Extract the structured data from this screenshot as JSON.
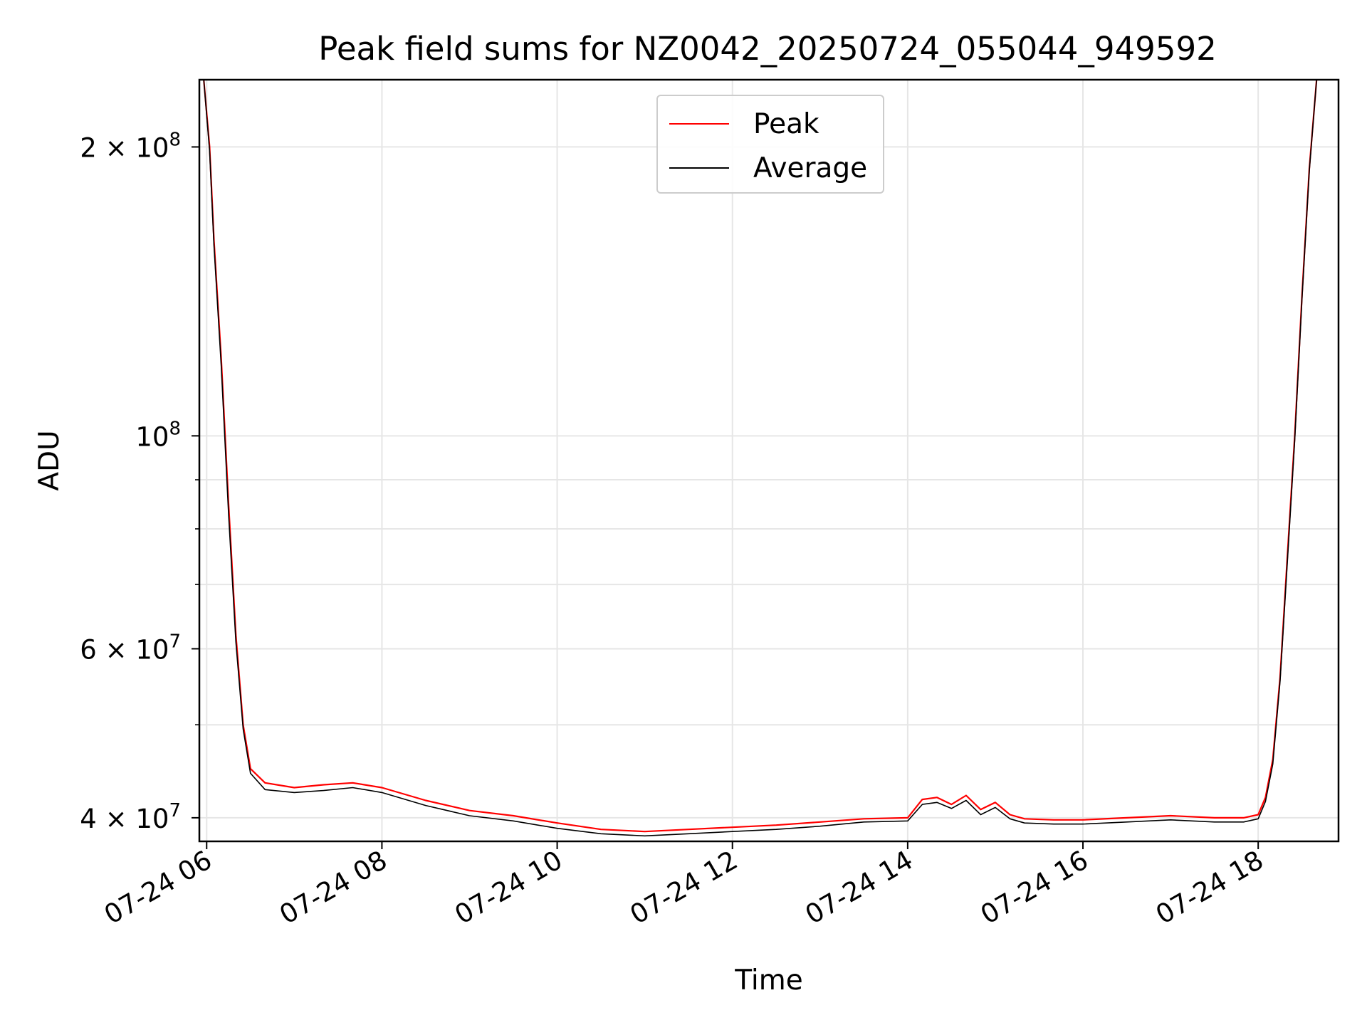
{
  "chart_data": {
    "type": "line",
    "title": "Peak field sums for NZ0042_20250724_055044_949592",
    "xlabel": "Time",
    "ylabel": "ADU",
    "yscale": "log",
    "grid": true,
    "legend_position": "upper center",
    "xlim": [
      "2025-07-24 05:55",
      "2025-07-24 18:55"
    ],
    "ylim": [
      37800000,
      235000000
    ],
    "x_ticks": [
      {
        "value": "2025-07-24 06:00",
        "label": "07-24 06"
      },
      {
        "value": "2025-07-24 08:00",
        "label": "07-24 08"
      },
      {
        "value": "2025-07-24 10:00",
        "label": "07-24 10"
      },
      {
        "value": "2025-07-24 12:00",
        "label": "07-24 12"
      },
      {
        "value": "2025-07-24 14:00",
        "label": "07-24 14"
      },
      {
        "value": "2025-07-24 16:00",
        "label": "07-24 16"
      },
      {
        "value": "2025-07-24 18:00",
        "label": "07-24 18"
      }
    ],
    "y_ticks": [
      {
        "value": 40000000,
        "label_mantissa": "4 × 10",
        "label_exp": "7"
      },
      {
        "value": 60000000,
        "label_mantissa": "6 × 10",
        "label_exp": "7"
      },
      {
        "value": 100000000,
        "label_mantissa": "10",
        "label_exp": "8"
      },
      {
        "value": 200000000,
        "label_mantissa": "2 × 10",
        "label_exp": "8"
      }
    ],
    "y_minor_ticks": [
      50000000,
      70000000,
      80000000,
      90000000
    ],
    "series": [
      {
        "name": "Peak",
        "color": "#ff0000",
        "x": [
          "2025-07-24 05:58",
          "2025-07-24 06:02",
          "2025-07-24 06:05",
          "2025-07-24 06:10",
          "2025-07-24 06:15",
          "2025-07-24 06:20",
          "2025-07-24 06:25",
          "2025-07-24 06:30",
          "2025-07-24 06:40",
          "2025-07-24 07:00",
          "2025-07-24 07:20",
          "2025-07-24 07:40",
          "2025-07-24 08:00",
          "2025-07-24 08:30",
          "2025-07-24 09:00",
          "2025-07-24 09:30",
          "2025-07-24 10:00",
          "2025-07-24 10:30",
          "2025-07-24 11:00",
          "2025-07-24 11:30",
          "2025-07-24 12:00",
          "2025-07-24 12:30",
          "2025-07-24 13:00",
          "2025-07-24 13:30",
          "2025-07-24 14:00",
          "2025-07-24 14:10",
          "2025-07-24 14:20",
          "2025-07-24 14:30",
          "2025-07-24 14:40",
          "2025-07-24 14:50",
          "2025-07-24 15:00",
          "2025-07-24 15:10",
          "2025-07-24 15:20",
          "2025-07-24 15:40",
          "2025-07-24 16:00",
          "2025-07-24 16:30",
          "2025-07-24 17:00",
          "2025-07-24 17:30",
          "2025-07-24 17:50",
          "2025-07-24 18:00",
          "2025-07-24 18:05",
          "2025-07-24 18:10",
          "2025-07-24 18:15",
          "2025-07-24 18:20",
          "2025-07-24 18:25",
          "2025-07-24 18:30",
          "2025-07-24 18:35",
          "2025-07-24 18:40"
        ],
        "values": [
          235000000,
          200000000,
          160000000,
          120000000,
          85000000,
          62000000,
          50000000,
          45000000,
          43500000,
          43000000,
          43300000,
          43500000,
          43000000,
          41700000,
          40700000,
          40200000,
          39500000,
          38900000,
          38700000,
          38900000,
          39100000,
          39300000,
          39600000,
          39900000,
          40000000,
          41800000,
          42000000,
          41300000,
          42200000,
          40800000,
          41500000,
          40300000,
          39900000,
          39800000,
          39800000,
          40000000,
          40200000,
          40000000,
          40000000,
          40300000,
          42000000,
          46000000,
          56000000,
          75000000,
          100000000,
          140000000,
          190000000,
          235000000
        ]
      },
      {
        "name": "Average",
        "color": "#000000",
        "x": [
          "2025-07-24 05:58",
          "2025-07-24 06:02",
          "2025-07-24 06:05",
          "2025-07-24 06:10",
          "2025-07-24 06:15",
          "2025-07-24 06:20",
          "2025-07-24 06:25",
          "2025-07-24 06:30",
          "2025-07-24 06:40",
          "2025-07-24 07:00",
          "2025-07-24 07:20",
          "2025-07-24 07:40",
          "2025-07-24 08:00",
          "2025-07-24 08:30",
          "2025-07-24 09:00",
          "2025-07-24 09:30",
          "2025-07-24 10:00",
          "2025-07-24 10:30",
          "2025-07-24 11:00",
          "2025-07-24 11:30",
          "2025-07-24 12:00",
          "2025-07-24 12:30",
          "2025-07-24 13:00",
          "2025-07-24 13:30",
          "2025-07-24 14:00",
          "2025-07-24 14:10",
          "2025-07-24 14:20",
          "2025-07-24 14:30",
          "2025-07-24 14:40",
          "2025-07-24 14:50",
          "2025-07-24 15:00",
          "2025-07-24 15:10",
          "2025-07-24 15:20",
          "2025-07-24 15:40",
          "2025-07-24 16:00",
          "2025-07-24 16:30",
          "2025-07-24 17:00",
          "2025-07-24 17:30",
          "2025-07-24 17:50",
          "2025-07-24 18:00",
          "2025-07-24 18:05",
          "2025-07-24 18:10",
          "2025-07-24 18:15",
          "2025-07-24 18:20",
          "2025-07-24 18:25",
          "2025-07-24 18:30",
          "2025-07-24 18:35",
          "2025-07-24 18:40"
        ],
        "values": [
          235000000,
          198000000,
          158000000,
          118000000,
          83000000,
          61000000,
          49500000,
          44500000,
          42800000,
          42500000,
          42700000,
          43000000,
          42500000,
          41200000,
          40200000,
          39700000,
          39000000,
          38500000,
          38300000,
          38500000,
          38700000,
          38900000,
          39200000,
          39600000,
          39700000,
          41300000,
          41500000,
          40900000,
          41700000,
          40300000,
          41000000,
          39900000,
          39500000,
          39400000,
          39400000,
          39600000,
          39800000,
          39600000,
          39600000,
          39900000,
          41600000,
          45500000,
          55500000,
          74000000,
          99000000,
          139000000,
          189000000,
          235000000
        ]
      }
    ]
  }
}
